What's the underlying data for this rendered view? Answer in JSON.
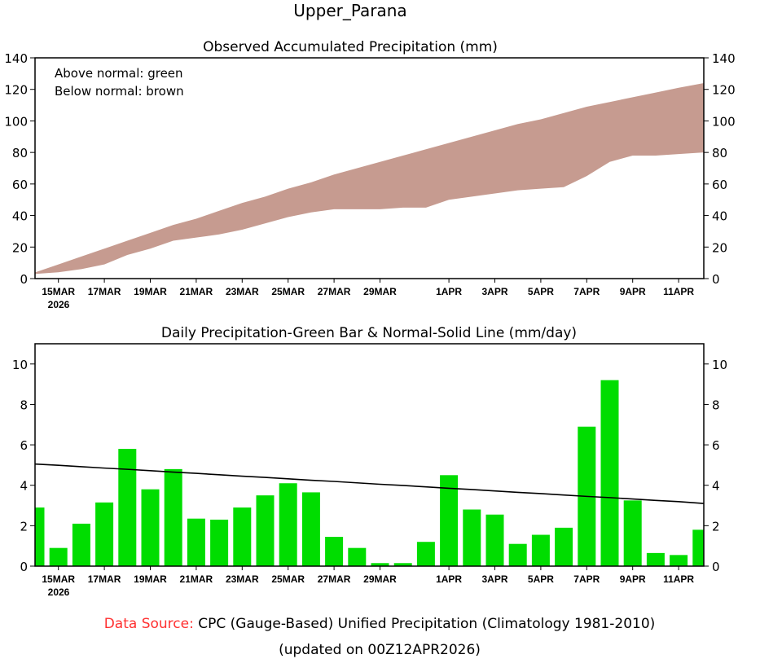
{
  "title": "Upper_Parana",
  "footer": {
    "label": "Data Source:",
    "text": "CPC (Gauge-Based) Unified Precipitation (Climatology 1981-2010)",
    "updated": "(updated on 00Z12APR2026)",
    "label_color": "#ff3030"
  },
  "chart_data": [
    {
      "type": "area",
      "title": "Observed Accumulated Precipitation (mm)",
      "annotations": [
        "Above normal: green",
        "Below normal: brown"
      ],
      "colors": {
        "below": "#c69b90",
        "above": "#00dd00"
      },
      "ylim": [
        0,
        140
      ],
      "yticks": [
        "0",
        "20",
        "40",
        "60",
        "80",
        "100",
        "120",
        "140"
      ],
      "xtick_labels": [
        "15MAR",
        "17MAR",
        "19MAR",
        "21MAR",
        "23MAR",
        "25MAR",
        "27MAR",
        "29MAR",
        "1APR",
        "3APR",
        "5APR",
        "7APR",
        "9APR",
        "11APR"
      ],
      "xtick_day_index": [
        1,
        3,
        5,
        7,
        9,
        11,
        13,
        15,
        18,
        20,
        22,
        24,
        26,
        28
      ],
      "year_label": "2026",
      "x": [
        "14MAR",
        "15MAR",
        "16MAR",
        "17MAR",
        "18MAR",
        "19MAR",
        "20MAR",
        "21MAR",
        "22MAR",
        "23MAR",
        "24MAR",
        "25MAR",
        "26MAR",
        "27MAR",
        "28MAR",
        "29MAR",
        "30MAR",
        "31MAR",
        "1APR",
        "2APR",
        "3APR",
        "4APR",
        "5APR",
        "6APR",
        "7APR",
        "8APR",
        "9APR",
        "10APR",
        "11APR",
        "12APR"
      ],
      "series": [
        {
          "name": "Normal",
          "values": [
            4,
            9,
            14,
            19,
            24,
            29,
            34,
            38,
            43,
            48,
            52,
            57,
            61,
            66,
            70,
            74,
            78,
            82,
            86,
            90,
            94,
            98,
            101,
            105,
            109,
            112,
            115,
            118,
            121,
            124
          ]
        },
        {
          "name": "Observed",
          "values": [
            3,
            4,
            6,
            9,
            15,
            19,
            24,
            26,
            28,
            31,
            35,
            39,
            42,
            44,
            44,
            44,
            45,
            45,
            50,
            52,
            54,
            56,
            57,
            58,
            65,
            74,
            78,
            78,
            79,
            80
          ]
        }
      ]
    },
    {
      "type": "bar",
      "title": "Daily Precipitation-Green Bar & Normal-Solid Line (mm/day)",
      "colors": {
        "bar": "#00dd00",
        "line": "#000000"
      },
      "ylim": [
        0,
        11
      ],
      "yticks": [
        "0",
        "2",
        "4",
        "6",
        "8",
        "10"
      ],
      "xtick_labels": [
        "15MAR",
        "17MAR",
        "19MAR",
        "21MAR",
        "23MAR",
        "25MAR",
        "27MAR",
        "29MAR",
        "1APR",
        "3APR",
        "5APR",
        "7APR",
        "9APR",
        "11APR"
      ],
      "xtick_day_index": [
        1,
        3,
        5,
        7,
        9,
        11,
        13,
        15,
        18,
        20,
        22,
        24,
        26,
        28
      ],
      "year_label": "2026",
      "categories": [
        "14MAR",
        "15MAR",
        "16MAR",
        "17MAR",
        "18MAR",
        "19MAR",
        "20MAR",
        "21MAR",
        "22MAR",
        "23MAR",
        "24MAR",
        "25MAR",
        "26MAR",
        "27MAR",
        "28MAR",
        "29MAR",
        "30MAR",
        "31MAR",
        "1APR",
        "2APR",
        "3APR",
        "4APR",
        "5APR",
        "6APR",
        "7APR",
        "8APR",
        "9APR",
        "10APR",
        "11APR",
        "12APR"
      ],
      "series": [
        {
          "name": "Daily Precipitation",
          "values": [
            2.9,
            0.9,
            2.1,
            3.15,
            5.8,
            3.8,
            4.8,
            2.35,
            2.3,
            2.9,
            3.5,
            4.1,
            3.65,
            1.45,
            0.9,
            0.15,
            0.15,
            1.2,
            4.5,
            2.8,
            2.55,
            1.1,
            1.55,
            1.9,
            6.9,
            9.2,
            3.25,
            0.65,
            0.55,
            1.8
          ]
        },
        {
          "name": "Normal",
          "values": [
            5.05,
            4.99,
            4.92,
            4.85,
            4.79,
            4.72,
            4.65,
            4.59,
            4.52,
            4.45,
            4.39,
            4.32,
            4.25,
            4.19,
            4.12,
            4.05,
            3.99,
            3.92,
            3.85,
            3.79,
            3.72,
            3.65,
            3.59,
            3.52,
            3.45,
            3.39,
            3.32,
            3.25,
            3.19,
            3.1
          ]
        }
      ]
    }
  ]
}
